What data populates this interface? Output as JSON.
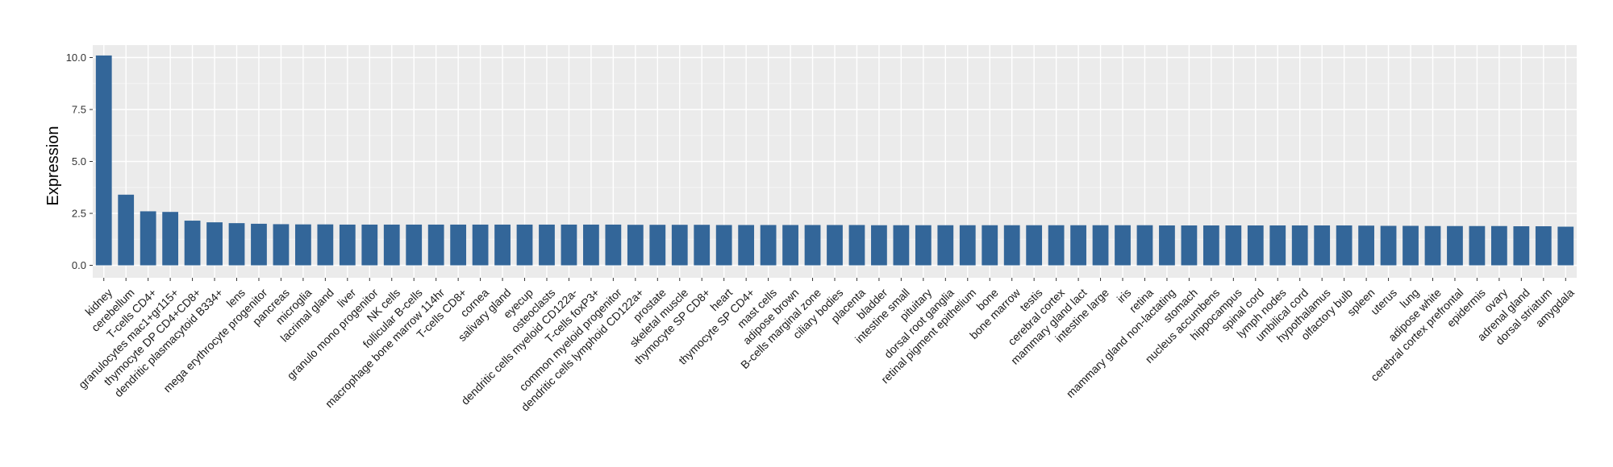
{
  "chart_data": {
    "type": "bar",
    "title": "",
    "xlabel": "",
    "ylabel": "Expression",
    "ylim": [
      -0.6,
      10.6
    ],
    "yticks": [
      "0.0",
      "2.5",
      "5.0",
      "7.5",
      "10.0"
    ],
    "grid": true,
    "legend": "none",
    "bar_color": "#336699",
    "panel_color": "#ebebeb",
    "categories": [
      "kidney",
      "cerebellum",
      "T-cells CD4+",
      "granulocytes mac1+gr115+",
      "thymocyte DP CD4+CD8+",
      "dendritic plasmacytoid B334+",
      "lens",
      "mega erythrocyte progenitor",
      "pancreas",
      "microglia",
      "lacrimal gland",
      "liver",
      "granulo mono progenitor",
      "NK cells",
      "follicular B-cells",
      "macrophage bone marrow 114hr",
      "T-cells CD8+",
      "cornea",
      "salivary gland",
      "eyecup",
      "osteoclasts",
      "dendritic cells myeloid CD122a-",
      "T-cells foxP3+",
      "common myeloid progenitor",
      "dendritic cells lymphoid CD122a+",
      "prostate",
      "skeletal muscle",
      "thymocyte SP CD8+",
      "heart",
      "thymocyte SP CD4+",
      "mast cells",
      "adipose brown",
      "B-cells marginal zone",
      "ciliary bodies",
      "placenta",
      "bladder",
      "intestine small",
      "pituitary",
      "dorsal root ganglia",
      "retinal pigment epithelium",
      "bone",
      "bone marrow",
      "testis",
      "cerebral cortex",
      "mammary gland lact",
      "intestine large",
      "iris",
      "retina",
      "mammary gland non-lactating",
      "stomach",
      "nucleus accumbens",
      "hippocampus",
      "spinal cord",
      "lymph nodes",
      "umbilical cord",
      "hypothalamus",
      "olfactory bulb",
      "spleen",
      "uterus",
      "lung",
      "adipose white",
      "cerebral cortex prefrontal",
      "epidermis",
      "ovary",
      "adrenal gland",
      "dorsal striatum",
      "amygdala"
    ],
    "values": [
      10.1,
      3.4,
      2.6,
      2.57,
      2.15,
      2.07,
      2.03,
      2.0,
      1.98,
      1.97,
      1.97,
      1.96,
      1.96,
      1.96,
      1.96,
      1.96,
      1.96,
      1.96,
      1.96,
      1.96,
      1.96,
      1.96,
      1.96,
      1.96,
      1.95,
      1.95,
      1.95,
      1.95,
      1.94,
      1.94,
      1.94,
      1.94,
      1.94,
      1.94,
      1.94,
      1.93,
      1.93,
      1.93,
      1.93,
      1.93,
      1.93,
      1.93,
      1.93,
      1.93,
      1.93,
      1.93,
      1.93,
      1.93,
      1.92,
      1.92,
      1.92,
      1.92,
      1.92,
      1.92,
      1.92,
      1.92,
      1.92,
      1.91,
      1.9,
      1.9,
      1.89,
      1.89,
      1.89,
      1.89,
      1.88,
      1.88,
      1.86
    ]
  }
}
